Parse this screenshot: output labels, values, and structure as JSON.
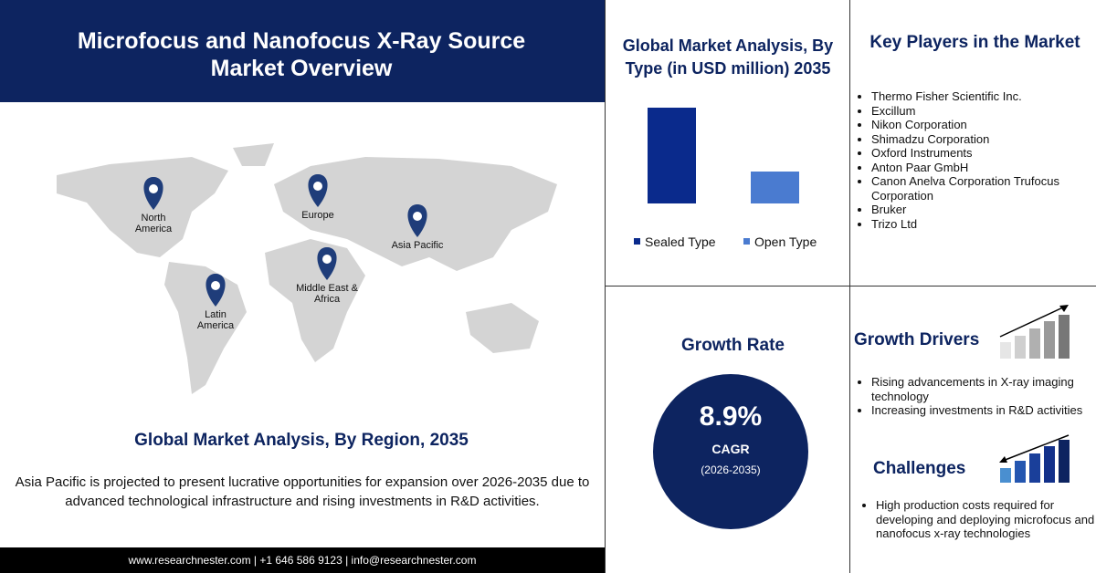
{
  "header": {
    "title": "Microfocus and Nanofocus X-Ray Source Market Overview"
  },
  "map": {
    "regions": [
      "North America",
      "Europe",
      "Asia Pacific",
      "Middle East & Africa",
      "Latin America"
    ],
    "caption": "Global Market Analysis, By Region, 2035",
    "description": "Asia Pacific is projected to present lucrative opportunities for expansion over 2026-2035 due to advanced technological infrastructure and rising investments in R&D activities."
  },
  "footer": {
    "contact": "www.researchnester.com | +1 646 586 9123 | info@researchnester.com"
  },
  "chart_data": {
    "type": "bar",
    "title": "Global Market Analysis, By Type (in USD million) 2035",
    "categories": [
      "Sealed Type",
      "Open Type"
    ],
    "values": [
      75,
      25
    ],
    "colors": [
      "#0a2a8c",
      "#4a7bd0"
    ]
  },
  "key_players": {
    "title": "Key Players in the Market",
    "items": [
      "Thermo Fisher Scientific Inc.",
      "Excillum",
      "Nikon Corporation",
      "Shimadzu Corporation",
      "Oxford Instruments",
      "Anton Paar GmbH",
      "Canon Anelva Corporation Trufocus Corporation",
      "Bruker",
      "Trizo Ltd"
    ]
  },
  "growth_rate": {
    "title": "Growth Rate",
    "value": "8.9%",
    "label": "CAGR",
    "period": "(2026-2035)"
  },
  "growth_drivers": {
    "title": "Growth Drivers",
    "items": [
      "Rising advancements in X-ray imaging technology",
      "Increasing investments in R&D activities"
    ]
  },
  "challenges": {
    "title": "Challenges",
    "items": [
      "High production costs required for developing and deploying microfocus and nanofocus x-ray technologies"
    ]
  }
}
